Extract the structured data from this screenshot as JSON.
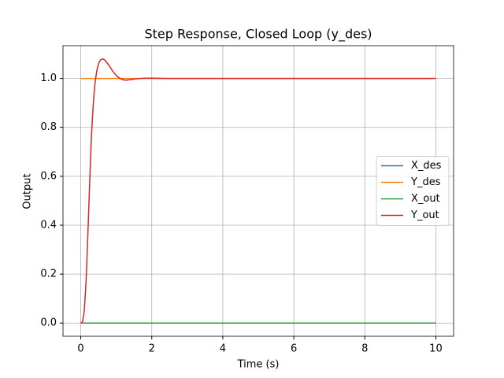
{
  "chart_data": {
    "type": "line",
    "title": "Step Response, Closed Loop (y_des)",
    "xlabel": "Time (s)",
    "ylabel": "Output",
    "x": [
      0,
      0.05,
      0.1,
      0.15,
      0.2,
      0.25,
      0.3,
      0.35,
      0.4,
      0.45,
      0.5,
      0.55,
      0.6,
      0.65,
      0.7,
      0.8,
      0.9,
      1.0,
      1.1,
      1.2,
      1.3,
      1.4,
      1.6,
      1.8,
      2.0,
      2.5,
      3,
      4,
      5,
      6,
      7,
      8,
      9,
      10
    ],
    "series": [
      {
        "name": "X_des",
        "color": "#1f77b4",
        "values": [
          0,
          0,
          0,
          0,
          0,
          0,
          0,
          0,
          0,
          0,
          0,
          0,
          0,
          0,
          0,
          0,
          0,
          0,
          0,
          0,
          0,
          0,
          0,
          0,
          0,
          0,
          0,
          0,
          0,
          0,
          0,
          0,
          0,
          0
        ]
      },
      {
        "name": "Y_des",
        "color": "#ff7f0e",
        "values": [
          1,
          1,
          1,
          1,
          1,
          1,
          1,
          1,
          1,
          1,
          1,
          1,
          1,
          1,
          1,
          1,
          1,
          1,
          1,
          1,
          1,
          1,
          1,
          1,
          1,
          1,
          1,
          1,
          1,
          1,
          1,
          1,
          1,
          1
        ]
      },
      {
        "name": "X_out",
        "color": "#2ca02c",
        "values": [
          0,
          0,
          0,
          0,
          0,
          0,
          0,
          0,
          0,
          0,
          0,
          0,
          0,
          0,
          0,
          0,
          0,
          0,
          0,
          0,
          0,
          0,
          0,
          0,
          0,
          0,
          0,
          0,
          0,
          0,
          0,
          0,
          0,
          0
        ]
      },
      {
        "name": "Y_out",
        "color": "#d62728",
        "values": [
          0,
          0.005,
          0.05,
          0.17,
          0.36,
          0.57,
          0.76,
          0.89,
          0.98,
          1.03,
          1.06,
          1.075,
          1.08,
          1.078,
          1.072,
          1.052,
          1.03,
          1.012,
          1.0,
          0.994,
          0.993,
          0.995,
          0.999,
          1.001,
          1.001,
          1,
          1,
          1,
          1,
          1,
          1,
          1,
          1,
          1
        ]
      }
    ],
    "xlim": [
      -0.5,
      10.5
    ],
    "xticks": [
      0,
      2,
      4,
      6,
      8,
      10
    ],
    "ylim": [
      -0.054,
      1.134
    ],
    "yticks": [
      {
        "value": 0,
        "label": "0.0"
      },
      {
        "value": 0.2,
        "label": "0.2"
      },
      {
        "value": 0.4,
        "label": "0.4"
      },
      {
        "value": 0.6,
        "label": "0.6"
      },
      {
        "value": 0.8,
        "label": "0.8"
      },
      {
        "value": 1.0,
        "label": "1.0"
      }
    ],
    "grid": true,
    "legend": "center right"
  }
}
